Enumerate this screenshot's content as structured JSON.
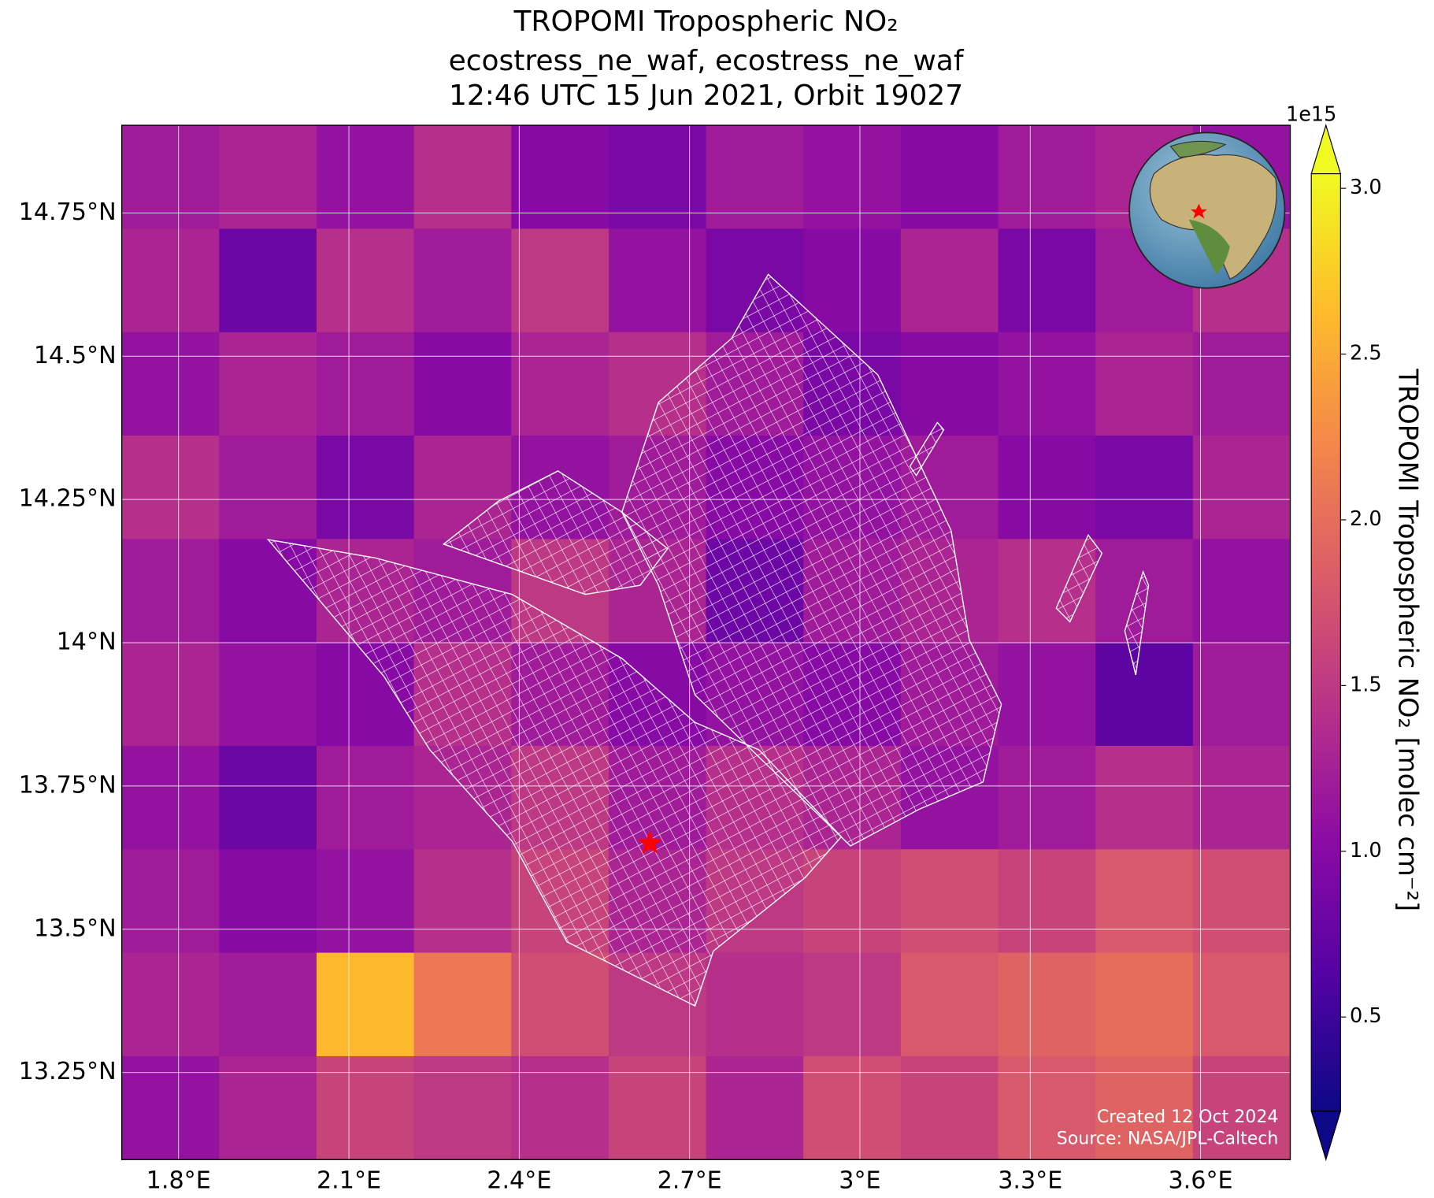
{
  "chart_data": {
    "type": "heatmap",
    "title_lines": [
      "TROPOMI Tropospheric NO₂",
      "ecostress_ne_waf, ecostress_ne_waf",
      "12:46 UTC 15 Jun 2021, Orbit 19027"
    ],
    "xlim": [
      1.7,
      3.758
    ],
    "ylim": [
      13.098,
      14.903
    ],
    "xticks": [
      {
        "value": 1.8,
        "label": "1.8°E"
      },
      {
        "value": 2.1,
        "label": "2.1°E"
      },
      {
        "value": 2.4,
        "label": "2.4°E"
      },
      {
        "value": 2.7,
        "label": "2.7°E"
      },
      {
        "value": 3.0,
        "label": "3°E"
      },
      {
        "value": 3.3,
        "label": "3.3°E"
      },
      {
        "value": 3.6,
        "label": "3.6°E"
      }
    ],
    "yticks": [
      {
        "value": 13.25,
        "label": "13.25°N"
      },
      {
        "value": 13.5,
        "label": "13.5°N"
      },
      {
        "value": 13.75,
        "label": "13.75°N"
      },
      {
        "value": 14.0,
        "label": "14°N"
      },
      {
        "value": 14.25,
        "label": "14.25°N"
      },
      {
        "value": 14.5,
        "label": "14.5°N"
      },
      {
        "value": 14.75,
        "label": "14.75°N"
      }
    ],
    "grid": true,
    "values": [
      [
        1.2,
        1.3,
        1.1,
        1.4,
        1.0,
        0.9,
        1.2,
        1.1,
        1.0,
        1.2,
        1.3,
        1.1
      ],
      [
        1.3,
        0.8,
        1.4,
        1.2,
        1.5,
        1.1,
        0.9,
        1.0,
        1.3,
        0.9,
        1.2,
        1.4
      ],
      [
        1.1,
        1.3,
        1.2,
        1.0,
        1.3,
        1.4,
        1.2,
        0.9,
        1.0,
        1.1,
        1.3,
        1.2
      ],
      [
        1.4,
        1.2,
        0.9,
        1.3,
        1.1,
        1.2,
        1.0,
        1.1,
        1.2,
        1.0,
        0.9,
        1.3
      ],
      [
        1.2,
        1.0,
        1.3,
        1.2,
        1.5,
        1.3,
        0.8,
        1.2,
        1.3,
        1.4,
        1.2,
        1.1
      ],
      [
        1.3,
        1.1,
        1.0,
        1.4,
        1.2,
        1.0,
        1.1,
        1.0,
        1.2,
        1.1,
        0.7,
        1.2
      ],
      [
        1.1,
        0.8,
        1.2,
        1.3,
        1.5,
        1.2,
        1.4,
        1.3,
        1.1,
        1.2,
        1.4,
        1.3
      ],
      [
        1.2,
        1.0,
        1.1,
        1.4,
        1.6,
        1.3,
        1.5,
        1.6,
        1.7,
        1.6,
        1.8,
        1.7
      ],
      [
        1.3,
        1.2,
        2.6,
        2.1,
        1.7,
        1.5,
        1.4,
        1.5,
        1.8,
        1.9,
        2.0,
        1.8
      ],
      [
        1.1,
        1.3,
        1.6,
        1.5,
        1.4,
        1.6,
        1.3,
        1.7,
        1.6,
        1.8,
        1.9,
        1.6
      ]
    ],
    "colormap": [
      "#0d0887",
      "#5302a3",
      "#8b0aa5",
      "#b83289",
      "#db5c68",
      "#f48849",
      "#febd2a",
      "#f0f921"
    ],
    "clim": [
      0.216,
      3.044
    ],
    "cticks": [
      0.5,
      {
        "value": 1.0,
        "label": "1.0"
      },
      1.5,
      {
        "value": 2.0,
        "label": "2.0"
      },
      2.5,
      {
        "value": 3.0,
        "label": "3.0"
      }
    ],
    "colorbar_offset": "1e15",
    "colorbar_label": "TROPOMI Tropospheric NO₂ [molec cm⁻²]",
    "marker": {
      "lon": 2.63,
      "lat": 13.65,
      "color": "#ff0000"
    },
    "credits": [
      "Created 12 Oct 2024",
      "Source: NASA/JPL-Caltech"
    ]
  }
}
